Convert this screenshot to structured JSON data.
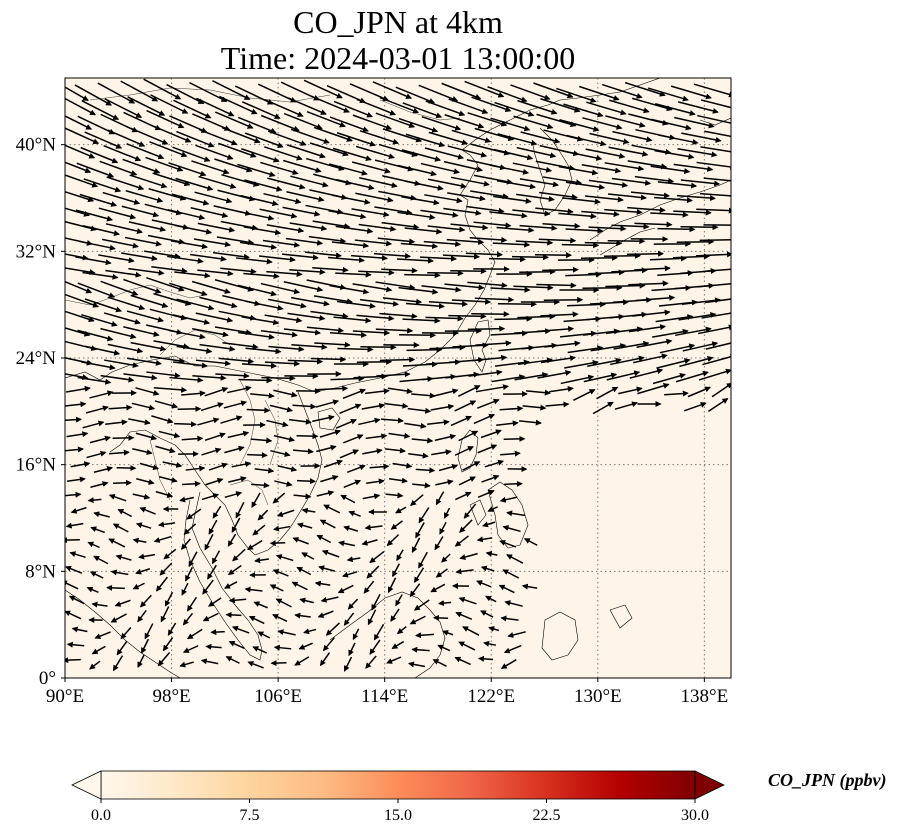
{
  "chart_data": {
    "type": "map-vector-field",
    "title_line1": "CO_JPN at 4km",
    "title_line2": "Time: 2024-03-01 13:00:00",
    "lon_range": [
      90,
      140
    ],
    "lat_range": [
      0,
      45
    ],
    "x_ticks": [
      {
        "value": 90,
        "label": "90°E"
      },
      {
        "value": 98,
        "label": "98°E"
      },
      {
        "value": 106,
        "label": "106°E"
      },
      {
        "value": 114,
        "label": "114°E"
      },
      {
        "value": 122,
        "label": "122°E"
      },
      {
        "value": 130,
        "label": "130°E"
      },
      {
        "value": 138,
        "label": "138°E"
      }
    ],
    "y_ticks": [
      {
        "value": 0,
        "label": "0°"
      },
      {
        "value": 8,
        "label": "8°N"
      },
      {
        "value": 16,
        "label": "16°N"
      },
      {
        "value": 24,
        "label": "24°N"
      },
      {
        "value": 32,
        "label": "32°N"
      },
      {
        "value": 40,
        "label": "40°N"
      }
    ],
    "grid": true,
    "field_fill_color": "#fef5e8",
    "field_value_ppbv": 0.0,
    "colorbar": {
      "label": "CO_JPN (ppbv)",
      "min": 0.0,
      "max": 30.0,
      "ticks": [
        "0.0",
        "7.5",
        "15.0",
        "22.5",
        "30.0"
      ],
      "colormap": "OrRd",
      "colors": [
        "#fff7ec",
        "#fee8c8",
        "#fdd49e",
        "#fdbb84",
        "#fc8d59",
        "#ef6548",
        "#d7301f",
        "#b30000",
        "#7f0000"
      ],
      "extend": "both"
    }
  }
}
